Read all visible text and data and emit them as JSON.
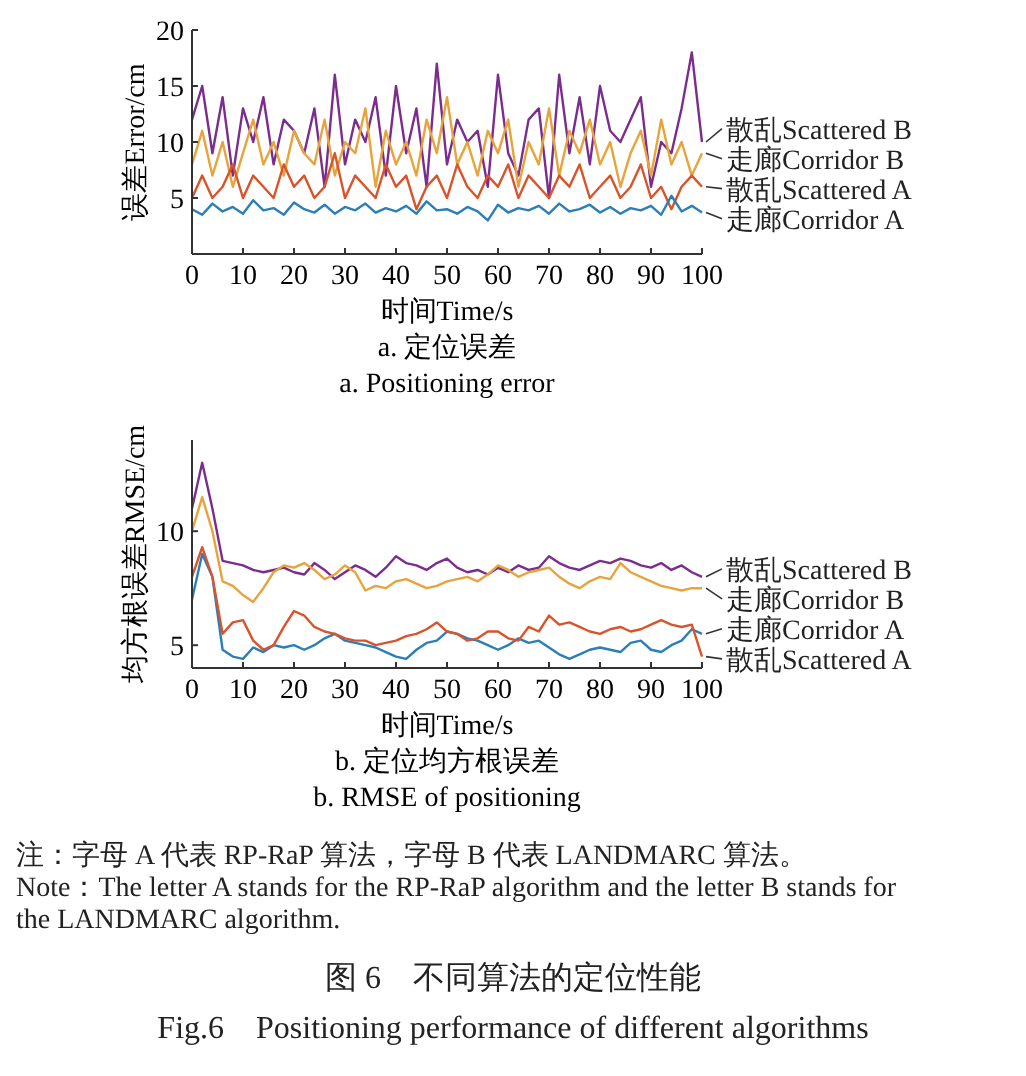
{
  "chart_data": [
    {
      "type": "line",
      "title": "a. 定位误差",
      "subtitle": "a. Positioning error",
      "xlabel": "时间Time/s",
      "ylabel": "误差Error/cm",
      "xlim": [
        0,
        100
      ],
      "xticks": [
        0,
        10,
        20,
        30,
        40,
        50,
        60,
        70,
        80,
        90,
        100
      ],
      "ylim": [
        0,
        20
      ],
      "yticks": [
        5,
        10,
        15,
        20
      ],
      "grid": false,
      "x": [
        0,
        2,
        4,
        6,
        8,
        10,
        12,
        14,
        16,
        18,
        20,
        22,
        24,
        26,
        28,
        30,
        32,
        34,
        36,
        38,
        40,
        42,
        44,
        46,
        48,
        50,
        52,
        54,
        56,
        58,
        60,
        62,
        64,
        66,
        68,
        70,
        72,
        74,
        76,
        78,
        80,
        82,
        84,
        86,
        88,
        90,
        92,
        94,
        96,
        98,
        100
      ],
      "series": [
        {
          "name": "散乱Scattered B",
          "color": "#7b2d8e",
          "values": [
            12,
            15,
            9,
            14,
            7,
            13,
            10,
            14,
            8,
            12,
            11,
            9,
            13,
            6,
            16,
            8,
            12,
            10,
            14,
            7,
            15,
            9,
            13,
            6,
            17,
            8,
            12,
            10,
            11,
            6,
            16,
            9,
            7,
            12,
            13,
            5,
            16,
            9,
            14,
            8,
            15,
            11,
            10,
            12,
            14,
            6,
            10,
            9,
            13,
            18,
            10
          ]
        },
        {
          "name": "走廊Corridor B",
          "color": "#e8a33c",
          "values": [
            8,
            11,
            7,
            10,
            6,
            9,
            12,
            8,
            10,
            7,
            11,
            9,
            8,
            12,
            7,
            10,
            9,
            13,
            6,
            11,
            8,
            10,
            7,
            12,
            9,
            14,
            8,
            10,
            7,
            11,
            9,
            12,
            6,
            10,
            8,
            13,
            7,
            11,
            9,
            12,
            8,
            10,
            6,
            9,
            11,
            7,
            12,
            8,
            10,
            7,
            9
          ]
        },
        {
          "name": "散乱Scattered A",
          "color": "#d9542b",
          "values": [
            5,
            7,
            5,
            6,
            8,
            5,
            7,
            6,
            5,
            8,
            6,
            7,
            5,
            6,
            9,
            5,
            7,
            6,
            5,
            8,
            6,
            7,
            4,
            6,
            7,
            5,
            8,
            6,
            5,
            7,
            6,
            8,
            5,
            7,
            6,
            5,
            7,
            6,
            8,
            5,
            6,
            7,
            5,
            6,
            8,
            5,
            6,
            4,
            6,
            7,
            6
          ]
        },
        {
          "name": "走廊Corridor A",
          "color": "#2a7fb8",
          "values": [
            4,
            3.5,
            4.5,
            3.8,
            4.2,
            3.6,
            4.8,
            3.9,
            4.1,
            3.5,
            4.6,
            4,
            3.7,
            4.4,
            3.6,
            4.2,
            3.9,
            4.5,
            3.7,
            4.1,
            3.8,
            4.3,
            3.6,
            4.7,
            3.9,
            4,
            3.6,
            4.2,
            3.8,
            3,
            4.4,
            3.7,
            4.1,
            3.9,
            4.3,
            3.6,
            4.5,
            3.8,
            4,
            4.4,
            3.7,
            4.2,
            3.6,
            4.1,
            3.9,
            4.3,
            3.5,
            5.2,
            3.8,
            4.3,
            3.7
          ]
        }
      ]
    },
    {
      "type": "line",
      "title": "b. 定位均方根误差",
      "subtitle": "b. RMSE of positioning",
      "xlabel": "时间Time/s",
      "ylabel": "均方根误差RMSE/cm",
      "xlim": [
        0,
        100
      ],
      "xticks": [
        0,
        10,
        20,
        30,
        40,
        50,
        60,
        70,
        80,
        90,
        100
      ],
      "ylim": [
        4,
        14
      ],
      "yticks": [
        5,
        10
      ],
      "grid": false,
      "x": [
        0,
        2,
        4,
        6,
        8,
        10,
        12,
        14,
        16,
        18,
        20,
        22,
        24,
        26,
        28,
        30,
        32,
        34,
        36,
        38,
        40,
        42,
        44,
        46,
        48,
        50,
        52,
        54,
        56,
        58,
        60,
        62,
        64,
        66,
        68,
        70,
        72,
        74,
        76,
        78,
        80,
        82,
        84,
        86,
        88,
        90,
        92,
        94,
        96,
        98,
        100
      ],
      "series": [
        {
          "name": "散乱Scattered B",
          "color": "#7b2d8e",
          "values": [
            11,
            13,
            11,
            8.7,
            8.6,
            8.5,
            8.3,
            8.2,
            8.3,
            8.4,
            8.2,
            8.1,
            8.6,
            8.3,
            7.9,
            8.2,
            8.5,
            8.3,
            8,
            8.4,
            8.9,
            8.6,
            8.5,
            8.3,
            8.6,
            8.8,
            8.4,
            8.2,
            8.3,
            8.1,
            8.4,
            8.2,
            8.5,
            8.3,
            8.4,
            8.9,
            8.6,
            8.4,
            8.3,
            8.5,
            8.7,
            8.6,
            8.8,
            8.7,
            8.5,
            8.4,
            8.6,
            8.3,
            8.5,
            8.2,
            8.0
          ]
        },
        {
          "name": "走廊Corridor B",
          "color": "#e8a33c",
          "values": [
            10,
            11.5,
            10,
            7.8,
            7.6,
            7.2,
            6.9,
            7.5,
            8.2,
            8.5,
            8.4,
            8.6,
            8.3,
            7.9,
            8.1,
            8.5,
            8.2,
            7.4,
            7.6,
            7.5,
            7.8,
            7.9,
            7.7,
            7.5,
            7.6,
            7.8,
            7.9,
            8,
            7.8,
            8.1,
            8.5,
            8.3,
            8,
            8.2,
            8.3,
            8.4,
            8,
            7.7,
            7.5,
            7.8,
            8,
            7.9,
            8.6,
            8.2,
            8,
            7.8,
            7.6,
            7.5,
            7.4,
            7.5,
            7.5
          ]
        },
        {
          "name": "走廊Corridor A",
          "color": "#2a7fb8",
          "values": [
            7,
            9,
            8,
            4.8,
            4.5,
            4.4,
            4.9,
            4.7,
            5,
            4.9,
            5,
            4.8,
            5,
            5.3,
            5.5,
            5.2,
            5.1,
            5,
            4.9,
            4.7,
            4.5,
            4.4,
            4.8,
            5.1,
            5.2,
            5.6,
            5.5,
            5.3,
            5.2,
            5,
            4.8,
            5,
            5.3,
            5.1,
            5.2,
            4.9,
            4.6,
            4.4,
            4.6,
            4.8,
            4.9,
            4.8,
            4.7,
            5.1,
            5.2,
            4.8,
            4.7,
            5,
            5.2,
            5.7,
            5.5
          ]
        },
        {
          "name": "散乱Scattered A",
          "color": "#d9542b",
          "values": [
            8,
            9.3,
            8,
            5.5,
            6,
            6.1,
            5.2,
            4.8,
            5,
            5.8,
            6.5,
            6.3,
            5.8,
            5.6,
            5.5,
            5.3,
            5.2,
            5.2,
            5,
            5.1,
            5.2,
            5.4,
            5.5,
            5.7,
            6,
            5.6,
            5.5,
            5.2,
            5.3,
            5.6,
            5.6,
            5.3,
            5.2,
            5.8,
            5.6,
            6.3,
            5.9,
            6,
            5.8,
            5.6,
            5.5,
            5.7,
            5.8,
            5.6,
            5.7,
            5.9,
            6.1,
            5.9,
            5.8,
            5.9,
            4.5
          ]
        }
      ],
      "annotations": [
        "注：字母 A 代表 RP-RaP 算法，字母 B 代表 LANDMARC 算法。",
        "Note：The letter A stands for the RP-RaP algorithm and the letter B stands for the LANDMARC algorithm.",
        "图 6　不同算法的定位性能",
        "Fig.6　Positioning performance of different algorithms"
      ]
    }
  ]
}
